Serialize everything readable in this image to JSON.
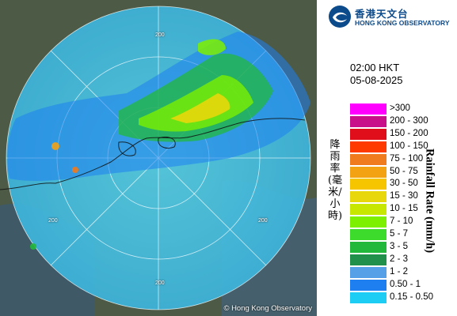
{
  "map": {
    "copyright": "© Hong Kong Observatory",
    "ring_labels": [
      "200",
      "200",
      "200",
      "200"
    ]
  },
  "logo": {
    "chinese": "香港天文台",
    "english": "HONG KONG OBSERVATORY",
    "brand_color": "#0b4a8b"
  },
  "timestamp": {
    "time": "02:00 HKT",
    "date": "05-08-2025"
  },
  "legend": {
    "title_chinese": "降雨率(毫米/小時)",
    "title_english": "Rainfall Rate (mm/h)",
    "items": [
      {
        "label": ">300",
        "color": "#ff00ff"
      },
      {
        "label": "200 - 300",
        "color": "#c8108a"
      },
      {
        "label": "150 - 200",
        "color": "#e00d1b"
      },
      {
        "label": "100 - 150",
        "color": "#ff3a00"
      },
      {
        "label": "75 - 100",
        "color": "#f07a1e"
      },
      {
        "label": "50 - 75",
        "color": "#f3a214"
      },
      {
        "label": "30 - 50",
        "color": "#f7c500"
      },
      {
        "label": "15 - 30",
        "color": "#e8d70a"
      },
      {
        "label": "10 - 15",
        "color": "#c7e600"
      },
      {
        "label": "7 - 10",
        "color": "#7cf000"
      },
      {
        "label": "5 - 7",
        "color": "#3ddc2c"
      },
      {
        "label": "3 - 5",
        "color": "#22b83c"
      },
      {
        "label": "2 - 3",
        "color": "#21904a"
      },
      {
        "label": "1 - 2",
        "color": "#55a0e6"
      },
      {
        "label": "0.50 - 1",
        "color": "#1e7ff0"
      },
      {
        "label": "0.15 - 0.50",
        "color": "#1ecdf4"
      }
    ]
  }
}
